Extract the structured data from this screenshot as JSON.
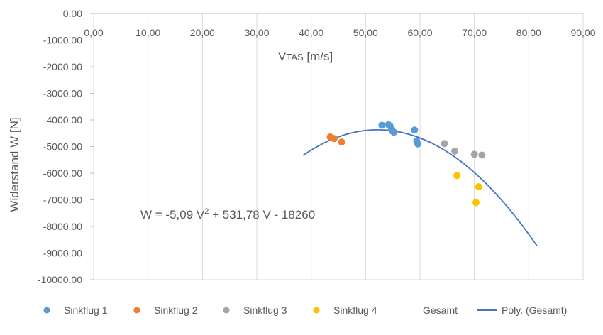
{
  "chart_data": {
    "type": "scatter",
    "x": {
      "min": 0,
      "max": 90,
      "step": 10,
      "ticks": [
        "0,00",
        "10,00",
        "20,00",
        "30,00",
        "40,00",
        "50,00",
        "60,00",
        "70,00",
        "80,00",
        "90,00"
      ],
      "position": "top"
    },
    "y": {
      "min": -10000,
      "max": 0,
      "step": 1000,
      "ticks": [
        "0,00",
        "-1000,00",
        "-2000,00",
        "-3000,00",
        "-4000,00",
        "-5000,00",
        "-6000,00",
        "-7000,00",
        "-8000,00",
        "-9000,00",
        "-10000,00"
      ]
    },
    "xlabel_main": "V",
    "xlabel_sub": "TAS",
    "xlabel_unit": " [m/s]",
    "ylabel": "Widerstand W [N]",
    "equation": {
      "prefix": "W = -5,09 V",
      "sup": "2",
      "suffix": " + 531,78 V - 18260"
    },
    "grid": "vertical",
    "legend_position": "bottom",
    "series": [
      {
        "name": "Sinkflug 1",
        "color": "#5B9BD5",
        "points": [
          [
            53.0,
            -4200
          ],
          [
            54.2,
            -4180
          ],
          [
            54.5,
            -4230
          ],
          [
            54.8,
            -4350
          ],
          [
            55.0,
            -4430
          ],
          [
            55.2,
            -4460
          ],
          [
            59.0,
            -4380
          ],
          [
            59.4,
            -4790
          ],
          [
            59.6,
            -4900
          ]
        ]
      },
      {
        "name": "Sinkflug 2",
        "color": "#ED7D31",
        "points": [
          [
            43.5,
            -4640
          ],
          [
            44.2,
            -4700
          ],
          [
            45.6,
            -4830
          ]
        ]
      },
      {
        "name": "Sinkflug 3",
        "color": "#A5A5A5",
        "points": [
          [
            64.5,
            -4890
          ],
          [
            66.4,
            -5170
          ],
          [
            70.0,
            -5290
          ],
          [
            71.4,
            -5320
          ]
        ]
      },
      {
        "name": "Sinkflug 4",
        "color": "#FFC000",
        "points": [
          [
            66.8,
            -6090
          ],
          [
            70.8,
            -6510
          ],
          [
            70.3,
            -7100
          ]
        ]
      }
    ],
    "fit": {
      "name": "Poly. (Gesamt)",
      "color": "#4472C4",
      "coefficients": [
        -5.09,
        531.78,
        -18260
      ],
      "x_range": [
        38.5,
        81.5
      ]
    },
    "legend": {
      "entries": [
        "Sinkflug 1",
        "Sinkflug 2",
        "Sinkflug 3",
        "Sinkflug 4",
        "Gesamt",
        "Poly. (Gesamt)"
      ]
    }
  }
}
